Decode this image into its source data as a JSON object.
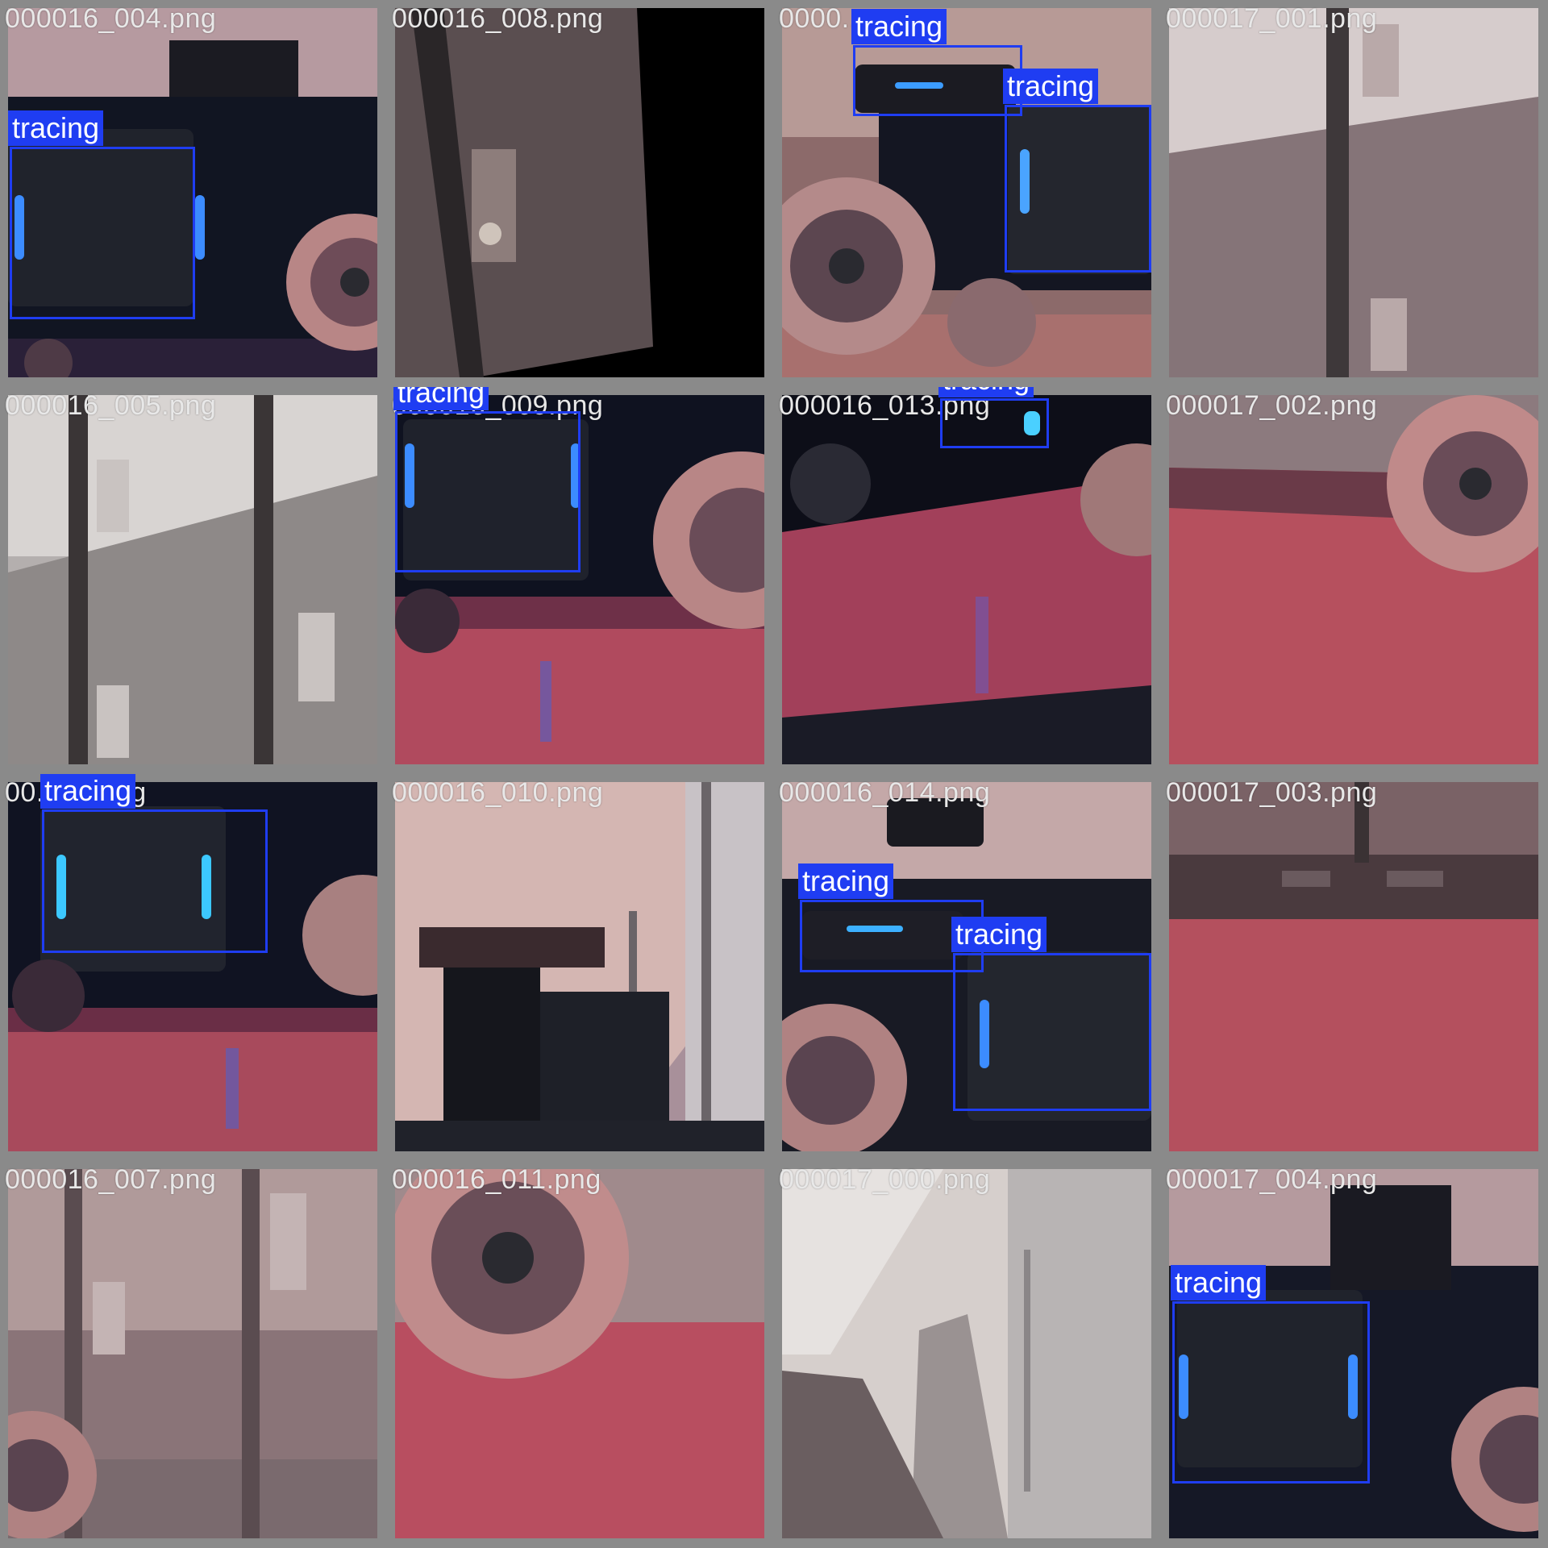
{
  "colors": {
    "detection": "#1f3df2",
    "label_text": "#ffffff",
    "filename_text": "#e8e8e8",
    "tile_border": "#8a8a8a"
  },
  "detection_label": "tracing",
  "tiles": [
    {
      "filename": "000016_004.png",
      "scene": "robot-case-closeup",
      "detections": 1
    },
    {
      "filename": "000016_008.png",
      "scene": "locker-dark",
      "detections": 0
    },
    {
      "filename": "0000...png",
      "scene": "robot-two-cases",
      "detections": 2
    },
    {
      "filename": "000017_001.png",
      "scene": "locker-wall",
      "detections": 0
    },
    {
      "filename": "000016_005.png",
      "scene": "locker-wall-gray",
      "detections": 0
    },
    {
      "filename": "000016_009.png",
      "scene": "robot-case-floor",
      "detections": 1
    },
    {
      "filename": "000016_013.png",
      "scene": "robot-underside-floor",
      "detections": 1
    },
    {
      "filename": "000017_002.png",
      "scene": "wheel-floor",
      "detections": 0
    },
    {
      "filename": "00...06.png",
      "scene": "robot-case-floor",
      "detections": 1
    },
    {
      "filename": "000016_010.png",
      "scene": "robot-hallway",
      "detections": 0
    },
    {
      "filename": "000016_014.png",
      "scene": "robot-two-cases",
      "detections": 2
    },
    {
      "filename": "000017_003.png",
      "scene": "floor-wall",
      "detections": 0
    },
    {
      "filename": "000016_007.png",
      "scene": "locker-wheel",
      "detections": 0
    },
    {
      "filename": "000016_011.png",
      "scene": "wheel-closeup",
      "detections": 0
    },
    {
      "filename": "000017_000.png",
      "scene": "hallway-ceiling",
      "detections": 0
    },
    {
      "filename": "000017_004.png",
      "scene": "robot-case-closeup",
      "detections": 1
    }
  ]
}
